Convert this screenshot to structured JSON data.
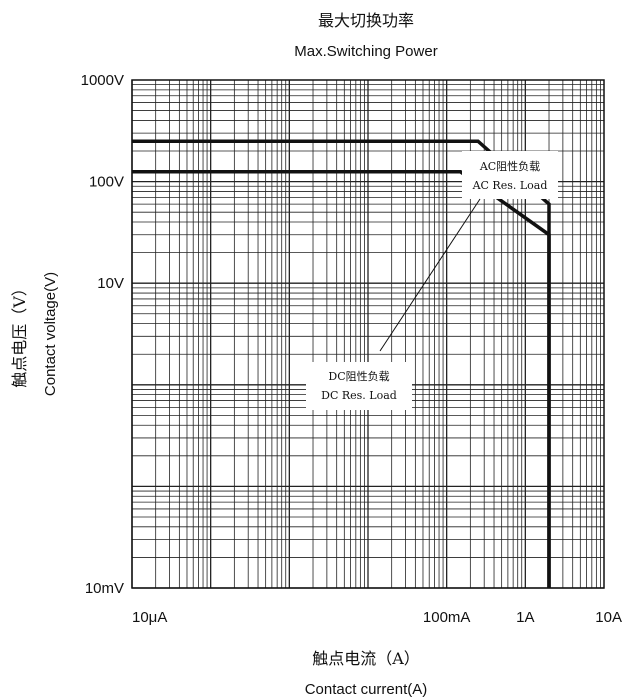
{
  "chart_data": {
    "type": "line",
    "title_cn": "最大切换功率",
    "title": "Max.Switching Power",
    "xlabel_cn": "触点电流（A）",
    "xlabel": "Contact current(A)",
    "ylabel_cn": "触点电压（V）",
    "ylabel": "Contact voltage(V)",
    "x_scale": "log",
    "y_scale": "log",
    "xlim": [
      1e-05,
      10
    ],
    "ylim": [
      0.01,
      1000
    ],
    "x_ticks": [
      {
        "value": 1e-05,
        "label": "10μA"
      },
      {
        "value": 0.1,
        "label": "100mA"
      },
      {
        "value": 1,
        "label": "1A"
      },
      {
        "value": 10,
        "label": "10A"
      }
    ],
    "y_ticks": [
      {
        "value": 1000,
        "label": "1000V"
      },
      {
        "value": 100,
        "label": "100V"
      },
      {
        "value": 10,
        "label": "10V"
      },
      {
        "value": 0.01,
        "label": "10mV"
      }
    ],
    "grid": true,
    "series": [
      {
        "name": "AC Res. Load",
        "name_cn": "AC阻性负载",
        "x": [
          1e-05,
          0.25,
          2,
          2
        ],
        "y": [
          250,
          250,
          60,
          0.01
        ]
      },
      {
        "name": "DC Res. Load",
        "name_cn": "DC阻性负载",
        "x": [
          1e-05,
          0.15,
          2,
          2
        ],
        "y": [
          125,
          125,
          30,
          0.01
        ]
      }
    ],
    "colors": {
      "line": "#111111",
      "grid": "#222222",
      "text": "#111111"
    }
  }
}
